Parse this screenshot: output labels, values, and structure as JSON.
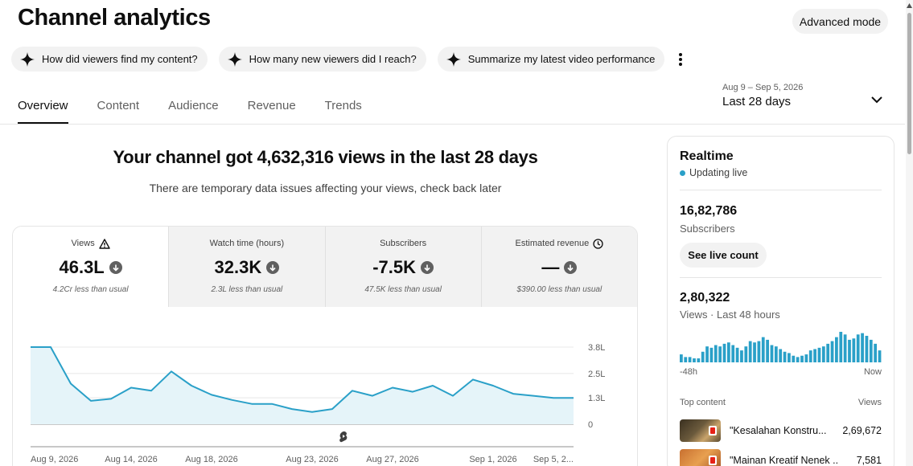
{
  "page_title": "Channel analytics",
  "advanced_mode_label": "Advanced mode",
  "suggestions": [
    "How did viewers find my content?",
    "How many new viewers did I reach?",
    "Summarize my latest video performance"
  ],
  "tabs": [
    "Overview",
    "Content",
    "Audience",
    "Revenue",
    "Trends"
  ],
  "date_range": {
    "dates": "Aug 9 – Sep 5, 2026",
    "label": "Last 28 days"
  },
  "headline": "Your channel got 4,632,316 views in the last 28 days",
  "subline": "There are temporary data issues affecting your views, check back later",
  "metrics": [
    {
      "label": "Views",
      "value": "46.3L",
      "note": "4.2Cr less than usual",
      "icon": "warning-icon"
    },
    {
      "label": "Watch time (hours)",
      "value": "32.3K",
      "note": "2.3L less than usual"
    },
    {
      "label": "Subscribers",
      "value": "-7.5K",
      "note": "47.5K less than usual"
    },
    {
      "label": "Estimated revenue",
      "value": "—",
      "note": "$390.00 less than usual",
      "icon": "clock-icon"
    }
  ],
  "chart_data": {
    "type": "area",
    "y_tick_labels": [
      "3.8L",
      "2.5L",
      "1.3L",
      "0"
    ],
    "y_ticks": [
      380000,
      250000,
      130000,
      0
    ],
    "ylim": [
      0,
      380000
    ],
    "x_tick_labels": [
      "Aug 9, 2026",
      "Aug 14, 2026",
      "Aug 18, 2026",
      "Aug 23, 2026",
      "Aug 27, 2026",
      "Sep 1, 2026",
      "Sep 5, 2..."
    ],
    "x_tick_indices": [
      0,
      5,
      9,
      14,
      18,
      23,
      27
    ],
    "dates": [
      "Aug 9",
      "Aug 10",
      "Aug 11",
      "Aug 12",
      "Aug 13",
      "Aug 14",
      "Aug 15",
      "Aug 16",
      "Aug 17",
      "Aug 18",
      "Aug 19",
      "Aug 20",
      "Aug 21",
      "Aug 22",
      "Aug 23",
      "Aug 24",
      "Aug 25",
      "Aug 26",
      "Aug 27",
      "Aug 28",
      "Aug 29",
      "Aug 30",
      "Aug 31",
      "Sep 1",
      "Sep 2",
      "Sep 3",
      "Sep 4",
      "Sep 5"
    ],
    "values": [
      380000,
      380000,
      200000,
      115000,
      125000,
      180000,
      165000,
      260000,
      190000,
      145000,
      120000,
      100000,
      100000,
      75000,
      60000,
      75000,
      165000,
      140000,
      180000,
      160000,
      190000,
      140000,
      220000,
      190000,
      150000,
      140000,
      130000,
      130000
    ],
    "color": "#2aa0c8",
    "fill": "#e5f4f9",
    "marker_index": 16,
    "marker_icon": "shorts-icon"
  },
  "realtime": {
    "title": "Realtime",
    "status": "Updating live",
    "subscribers_value": "16,82,786",
    "subscribers_label": "Subscribers",
    "live_count_label": "See live count",
    "views_value": "2,80,322",
    "views_label": "Views · Last 48 hours",
    "bars": [
      6,
      4,
      4,
      3,
      3,
      8,
      12,
      11,
      13,
      12,
      14,
      15,
      13,
      11,
      9,
      12,
      16,
      15,
      16,
      19,
      17,
      13,
      12,
      10,
      8,
      7,
      5,
      4,
      5,
      6,
      9,
      10,
      11,
      12,
      14,
      16,
      19,
      23,
      21,
      17,
      18,
      21,
      22,
      20,
      17,
      14,
      9
    ],
    "bar_axis_start": "-48h",
    "bar_axis_end": "Now",
    "top_content_label": "Top content",
    "top_content_views_label": "Views",
    "top_content": [
      {
        "title": "\"Kesalahan Konstru...",
        "views": "2,69,672"
      },
      {
        "title": "\"Mainan Kreatif Nenek ...",
        "views": "7,581"
      }
    ]
  }
}
